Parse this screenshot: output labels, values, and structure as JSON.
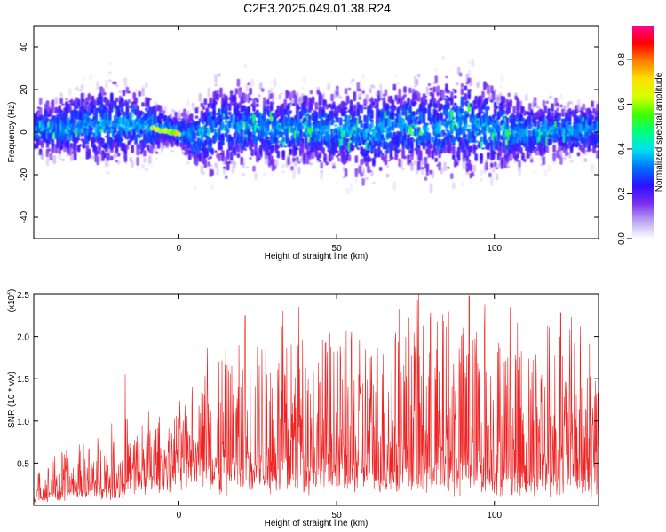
{
  "title": "C2E3.2025.049.01.38.R24",
  "chart_data": [
    {
      "type": "heatmap",
      "xlabel": "Height of straight line (km)",
      "ylabel": "Frequency (Hz)",
      "xlim": [
        -46,
        133
      ],
      "ylim": [
        -50,
        50
      ],
      "xticks": [
        0,
        50,
        100
      ],
      "yticks": [
        -40,
        -20,
        0,
        20,
        40
      ],
      "colorbar": {
        "label": "Normalized spectral amplitude",
        "range": [
          0,
          0.95
        ],
        "ticks": [
          0.0,
          0.2,
          0.4,
          0.6,
          0.8
        ],
        "tick_labels": [
          "0.0",
          "0.2",
          "0.4",
          "0.6",
          "0.8"
        ],
        "colormap": [
          "#ffffff",
          "#b9a4f2",
          "#7a2cf0",
          "#2a10ff",
          "#0070ff",
          "#00e0f0",
          "#00ff80",
          "#40ff00",
          "#d8ff00",
          "#ffe000",
          "#ff8000",
          "#ff0000",
          "#ff0090"
        ]
      },
      "band": {
        "center_x": [
          -46,
          -40,
          -30,
          -20,
          -10,
          -5,
          0,
          5,
          10,
          20,
          30,
          40,
          50,
          60,
          70,
          80,
          90,
          100,
          110,
          120,
          133
        ],
        "center_y": [
          1,
          2,
          3,
          4,
          3,
          2,
          0,
          -3,
          2,
          3,
          1,
          2,
          1,
          0,
          3,
          2,
          4,
          1,
          0,
          1,
          1
        ],
        "halfwidth": [
          10,
          12,
          16,
          18,
          14,
          8,
          8,
          14,
          20,
          18,
          16,
          16,
          18,
          20,
          18,
          20,
          22,
          18,
          14,
          12,
          12
        ]
      },
      "bright_segment": {
        "x": [
          -9,
          0
        ],
        "y": [
          2,
          -1
        ],
        "amplitude": 0.75
      }
    },
    {
      "type": "line",
      "xlabel": "Height of straight line (km)",
      "ylabel": "SNR (10 * v/v)",
      "y_multiplier": "(x10^4)",
      "y_multiplier_text": "(x10",
      "y_multiplier_exp": "4",
      "y_multiplier_close": ")",
      "xlim": [
        -46,
        133
      ],
      "ylim": [
        0,
        2.5
      ],
      "xticks": [
        0,
        50,
        100
      ],
      "yticks": [
        0.5,
        1.0,
        1.5,
        2.0,
        2.5
      ],
      "ytick_labels": [
        "0.5",
        "1.0",
        "1.5",
        "2.0",
        "2.5"
      ],
      "color": "#ee2222",
      "envelope": {
        "x": [
          -46,
          -40,
          -30,
          -20,
          -10,
          -5,
          0,
          5,
          9,
          10,
          15,
          20,
          30,
          40,
          50,
          60,
          70,
          80,
          90,
          100,
          110,
          120,
          133
        ],
        "base": [
          0.05,
          0.1,
          0.15,
          0.2,
          0.3,
          0.4,
          0.5,
          0.55,
          0.55,
          0.3,
          0.35,
          0.4,
          0.4,
          0.4,
          0.35,
          0.3,
          0.35,
          0.35,
          0.35,
          0.3,
          0.3,
          0.3,
          0.3
        ],
        "peak": [
          0.4,
          0.6,
          0.8,
          1.0,
          1.2,
          1.0,
          1.2,
          1.7,
          1.85,
          1.9,
          1.9,
          2.1,
          2.2,
          2.3,
          2.1,
          2.2,
          2.4,
          2.45,
          2.4,
          2.35,
          2.3,
          2.25,
          2.3
        ]
      },
      "peaks": [
        {
          "x": -17,
          "y": 1.55
        },
        {
          "x": 9,
          "y": 1.87
        },
        {
          "x": 21,
          "y": 2.25
        },
        {
          "x": 33,
          "y": 2.3
        },
        {
          "x": 38,
          "y": 2.35
        },
        {
          "x": 76,
          "y": 2.5
        },
        {
          "x": 92,
          "y": 2.48
        },
        {
          "x": 97,
          "y": 2.38
        },
        {
          "x": 105,
          "y": 2.35
        },
        {
          "x": 118,
          "y": 2.28
        },
        {
          "x": 121,
          "y": 2.28
        }
      ]
    }
  ]
}
